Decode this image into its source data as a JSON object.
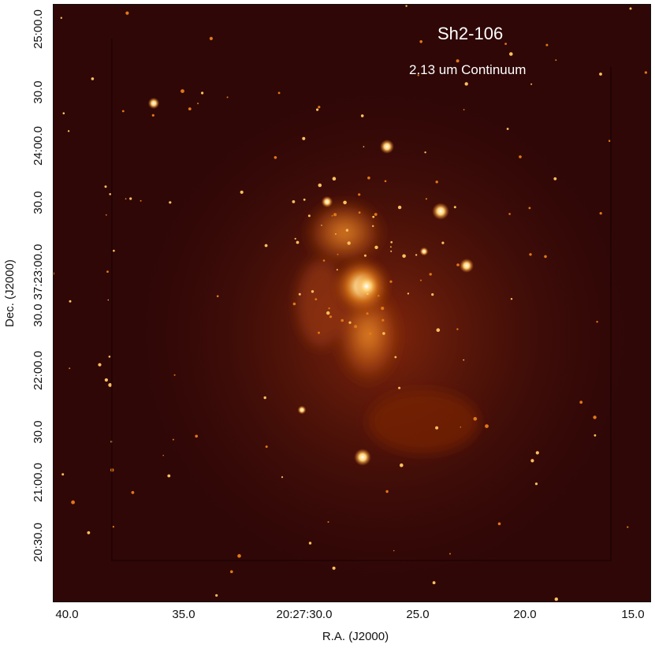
{
  "image": {
    "title": "Sh2-106",
    "subtitle": "2.13 um Continuum",
    "colormap": [
      "#2a0505",
      "#4a0e07",
      "#8a2a0c",
      "#d96a10",
      "#ffd070",
      "#ffffff"
    ],
    "nebula_color": "#ff9a2a",
    "background_color": "#2f0707"
  },
  "axes": {
    "x_label": "R.A. (J2000)",
    "y_label": "Dec. (J2000)",
    "x_ticks": [
      "40.0",
      "35.0",
      "20:27:30.0",
      "25.0",
      "20.0",
      "15.0"
    ],
    "y_ticks": [
      "25:00.0",
      "30.0",
      "24:00.0",
      "30.0",
      "37:23:00.0",
      "30.0",
      "22:00.0",
      "30.0",
      "21:00.0",
      "20:30.0"
    ]
  }
}
